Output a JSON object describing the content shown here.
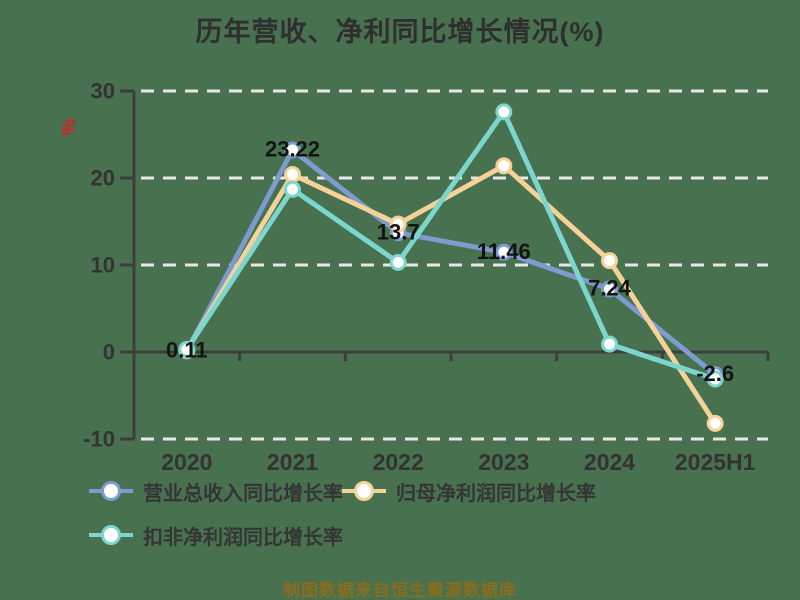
{
  "chart_data": {
    "type": "line",
    "title": "历年营收、净利同比增长情况(%)",
    "xlabel": "",
    "ylabel": "%",
    "ylabel_color": "#E01E1E",
    "ylim": [
      -10,
      30
    ],
    "y_ticks": [
      30,
      20,
      10,
      0,
      -10
    ],
    "grid": true,
    "legend_position": "bottom",
    "background_color": "#47714F",
    "categories": [
      "2020",
      "2021",
      "2022",
      "2023",
      "2024",
      "2025H1"
    ],
    "series": [
      {
        "name": "营业总收入同比增长率",
        "color": "#7D9BCE",
        "values": [
          0.11,
          23.22,
          13.7,
          11.46,
          7.24,
          -2.6
        ],
        "point_labels": [
          "0.11",
          "23.22",
          "13.7",
          "11.46",
          "7.24",
          "-2.6"
        ]
      },
      {
        "name": "归母净利润同比增长率",
        "color": "#F6D298",
        "values": [
          0.2,
          20.4,
          14.7,
          21.4,
          10.5,
          -8.2
        ]
      },
      {
        "name": "扣非净利润同比增长率",
        "color": "#7CD6CE",
        "values": [
          0.3,
          18.7,
          10.3,
          27.6,
          0.9,
          -3.1
        ]
      }
    ],
    "caption": "制图数据来自恒生聚源数据库",
    "caption_color": "#8A6D1C"
  }
}
